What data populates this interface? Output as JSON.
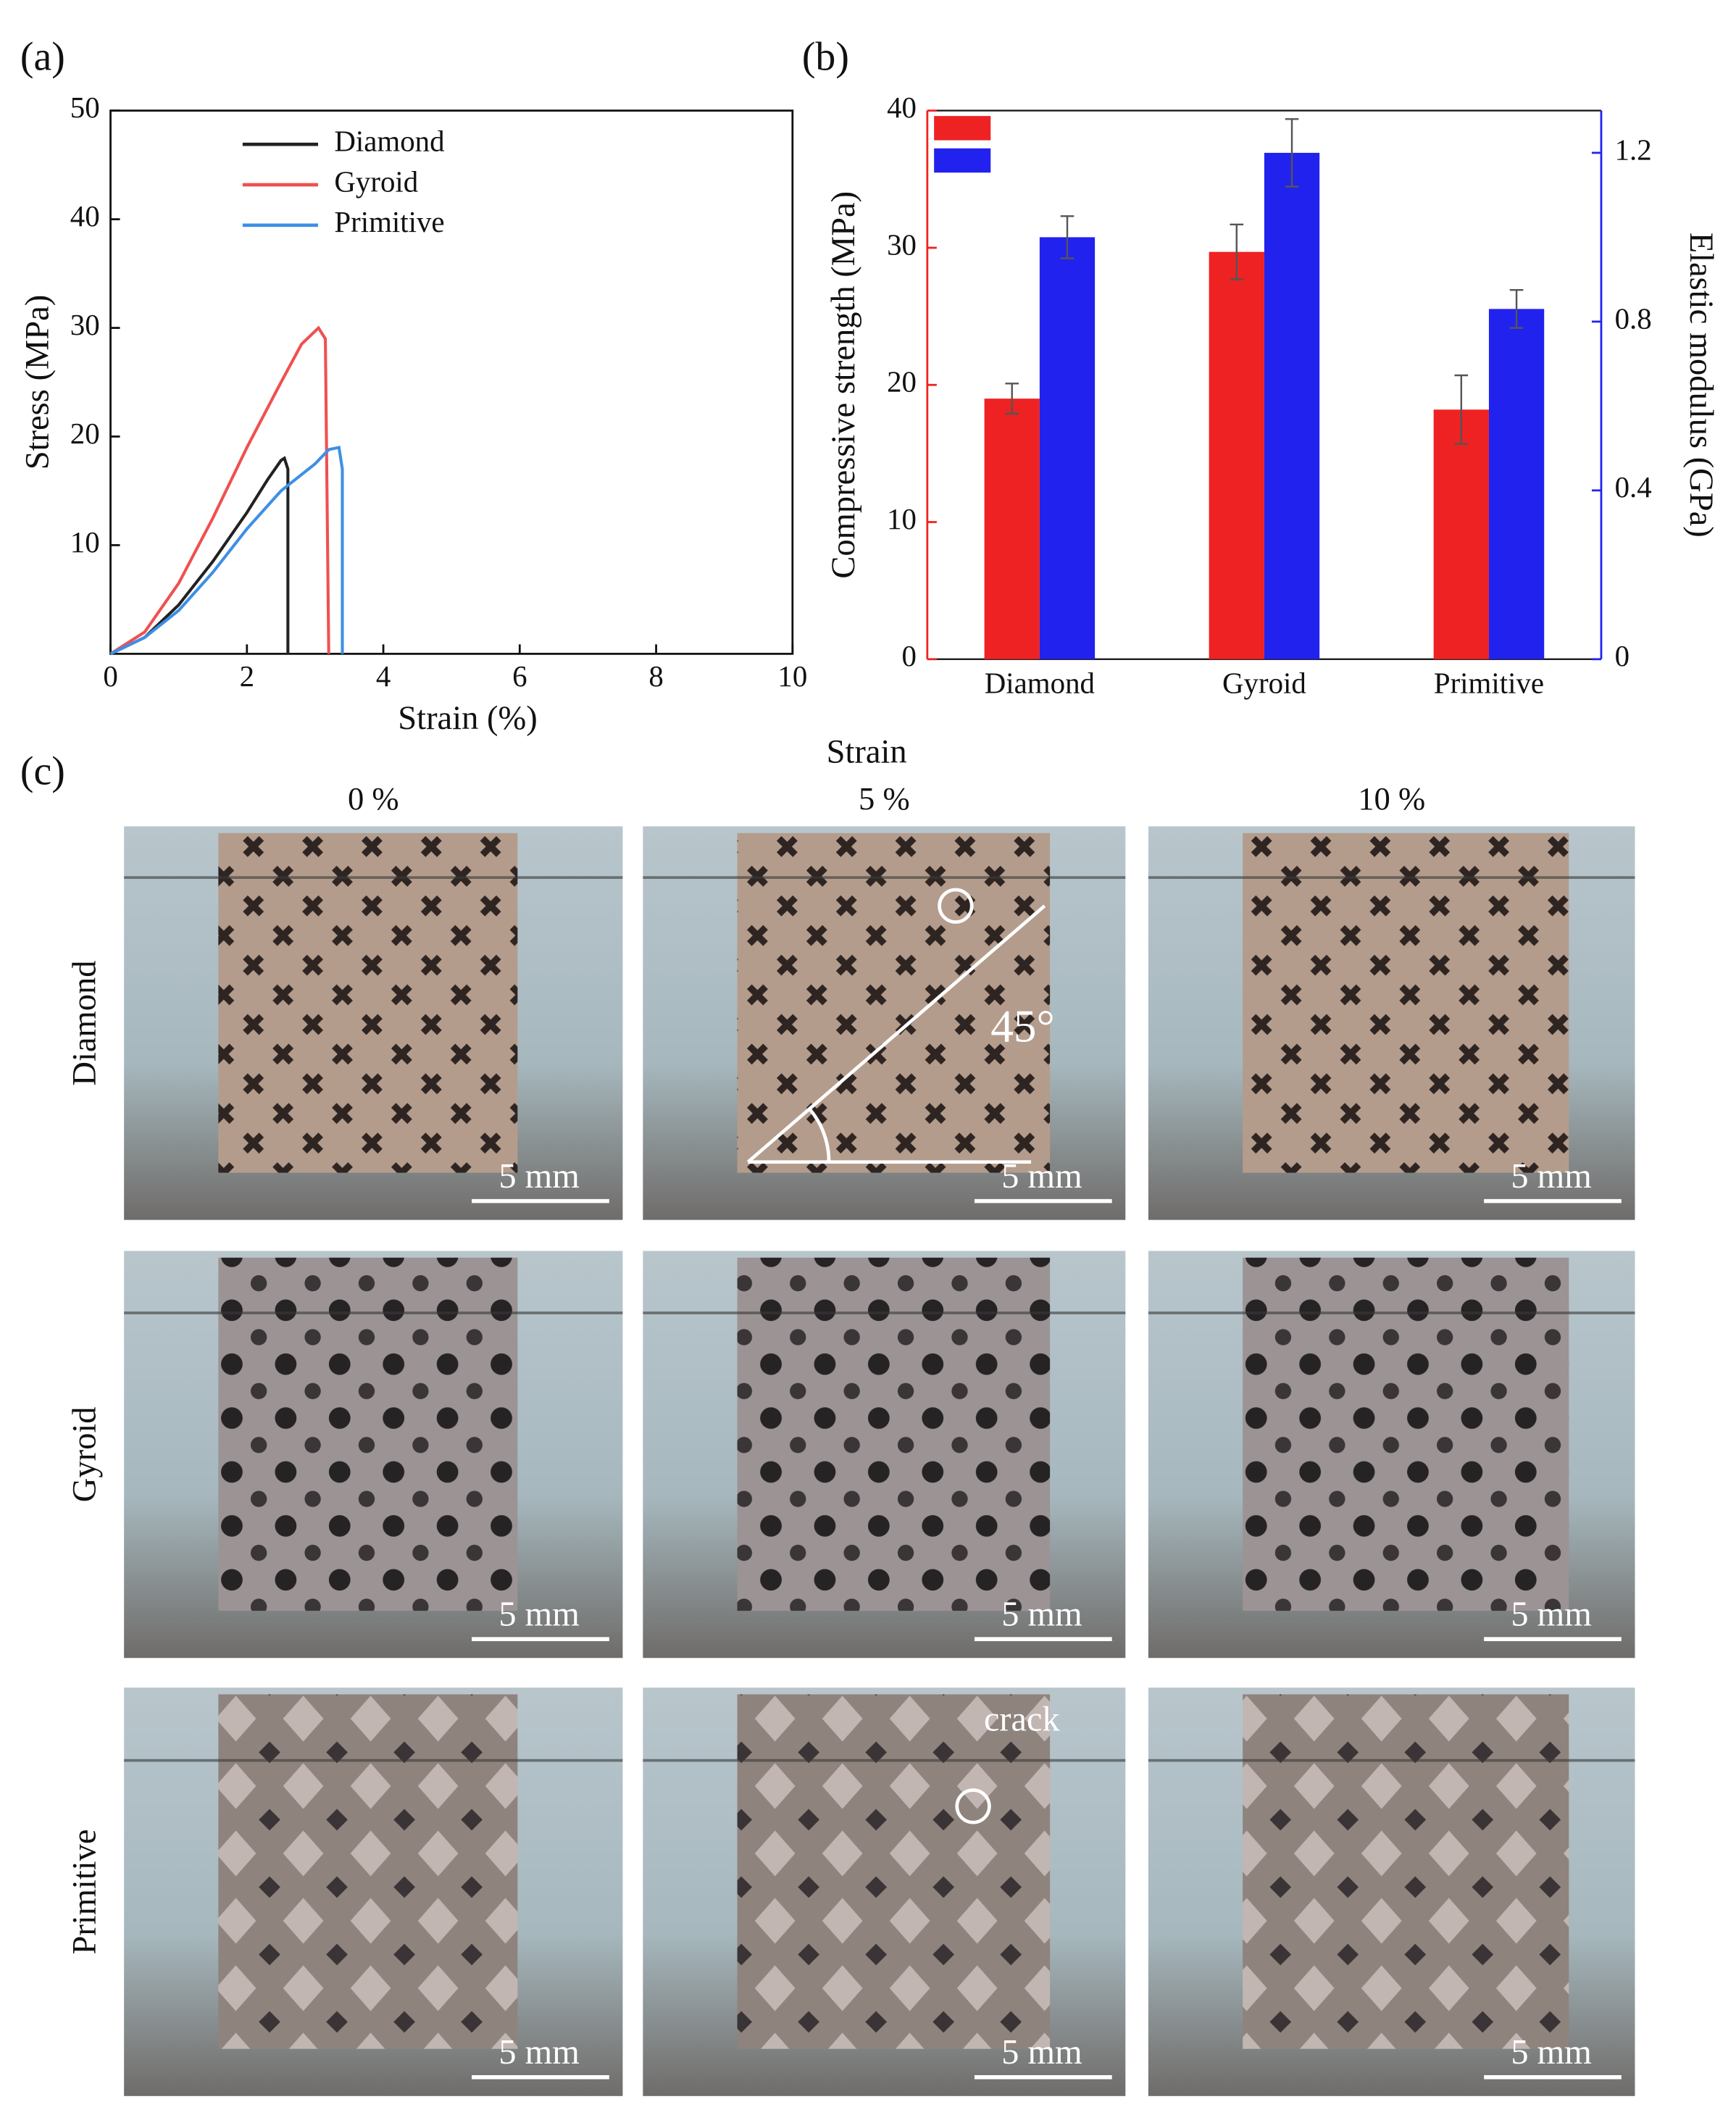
{
  "chart_data": [
    {
      "type": "line",
      "label": "(a)",
      "xlabel": "Strain (%)",
      "ylabel": "Stress (MPa)",
      "xlim": [
        0,
        10
      ],
      "ylim": [
        0,
        50
      ],
      "xticks": [
        0,
        2,
        4,
        6,
        8,
        10
      ],
      "yticks": [
        10,
        20,
        30,
        40,
        50
      ],
      "legend": "upper-left",
      "series": [
        {
          "name": "Diamond",
          "color": "#222222",
          "x": [
            0,
            0.5,
            1,
            1.5,
            2,
            2.3,
            2.5,
            2.55,
            2.6,
            2.6
          ],
          "values": [
            0,
            1.5,
            4.5,
            8.5,
            13,
            16,
            17.8,
            18,
            17,
            0
          ]
        },
        {
          "name": "Gyroid",
          "color": "#f05050",
          "x": [
            0,
            0.5,
            1,
            1.5,
            2,
            2.5,
            2.8,
            3.05,
            3.15,
            3.2
          ],
          "values": [
            0,
            2,
            6.5,
            12.5,
            19,
            25,
            28.5,
            30,
            29,
            0
          ]
        },
        {
          "name": "Primitive",
          "color": "#3d8fe6",
          "x": [
            0,
            0.5,
            1,
            1.5,
            2,
            2.5,
            3,
            3.2,
            3.35,
            3.4,
            3.4
          ],
          "values": [
            0,
            1.5,
            4,
            7.5,
            11.5,
            15,
            17.5,
            18.8,
            19,
            17,
            0
          ]
        }
      ]
    },
    {
      "type": "bar",
      "label": "(b)",
      "ylabel": "Compressive strength (MPa)",
      "y2label": "Elastic modulus (GPa)",
      "categories": [
        "Diamond",
        "Gyroid",
        "Primitive"
      ],
      "ylim": [
        0,
        40
      ],
      "yticks": [
        0,
        10,
        20,
        30,
        40
      ],
      "y2lim": [
        0,
        1.3
      ],
      "y2ticks": [
        0,
        0.4,
        0.8,
        1.2
      ],
      "legend": "upper-left",
      "series": [
        {
          "color": "#ee2222",
          "values": [
            19.0,
            29.7,
            18.2
          ],
          "errors": [
            1.1,
            2.0,
            2.5
          ]
        },
        {
          "color": "#2222ee",
          "axis": "y2",
          "values": [
            1.0,
            1.2,
            0.83
          ],
          "errors": [
            0.05,
            0.08,
            0.045
          ]
        }
      ]
    }
  ],
  "figure_c": {
    "label": "(c)",
    "title": "Strain",
    "columns": [
      "0 %",
      "5 %",
      "10 %"
    ],
    "rows": [
      "Diamond",
      "Gyroid",
      "Primitive"
    ],
    "scale_bars": [
      "5 mm",
      "5 mm",
      "5 mm",
      "5 mm",
      "5 mm",
      "5 mm",
      "5 mm",
      "5 mm",
      "5 mm"
    ],
    "annotations": {
      "angle": "45°",
      "crack": "crack"
    }
  }
}
